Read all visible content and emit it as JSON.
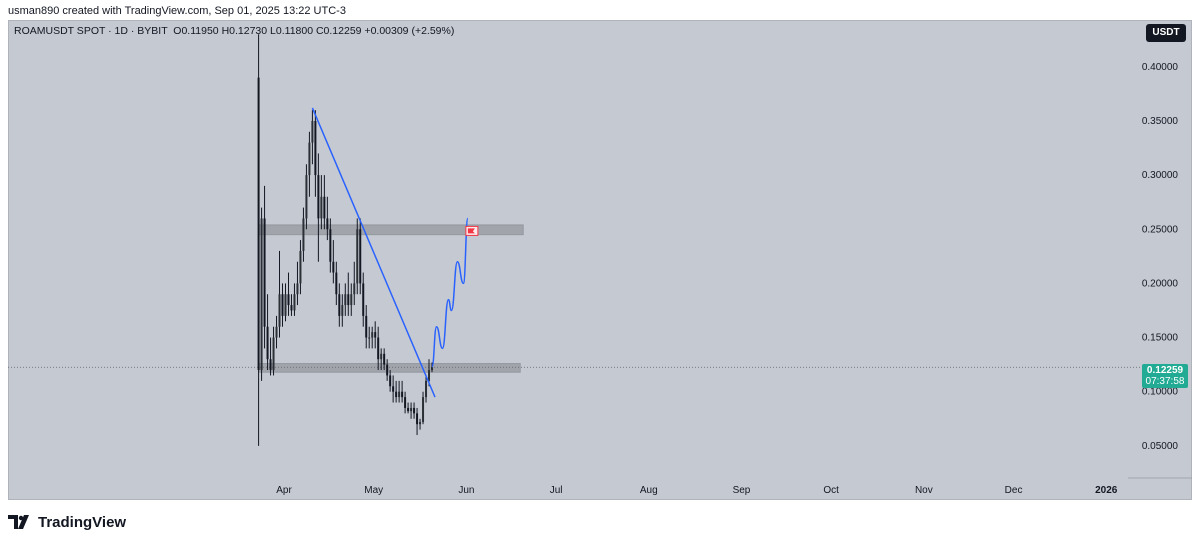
{
  "header": {
    "credit": "usman890 created with TradingView.com, Sep 01, 2025 13:22 UTC-3"
  },
  "legend": {
    "symbol": "ROAMUSDT SPOT · 1D · BYBIT",
    "open": "O0.11950",
    "high": "H0.12730",
    "low": "L0.11800",
    "close": "C0.12259",
    "change": "+0.00309 (+2.59%)"
  },
  "currency_button": "USDT",
  "price_tag": {
    "price": "0.12259",
    "countdown": "07:37:58"
  },
  "brand": {
    "name": "TradingView"
  },
  "colors": {
    "background": "#c5c9d1",
    "candle": "#131722",
    "trendline": "#2962ff",
    "zone": "#9b9ea5",
    "last_price": "#22ab94",
    "flag": "#f23645"
  },
  "chart_data": {
    "type": "candlestick",
    "x_ticks": [
      "Apr",
      "May",
      "Jun",
      "Jul",
      "Aug",
      "Sep",
      "Oct",
      "Nov",
      "Dec",
      "2026"
    ],
    "y_ticks": [
      "0.40000",
      "0.35000",
      "0.30000",
      "0.25000",
      "0.20000",
      "0.15000",
      "0.10000",
      "0.05000"
    ],
    "ylim": [
      0.03,
      0.42
    ],
    "candles": [
      [
        -8.5,
        0.39,
        0.43,
        0.05,
        0.12
      ],
      [
        -7.5,
        0.12,
        0.27,
        0.11,
        0.26
      ],
      [
        -6.5,
        0.26,
        0.29,
        0.14,
        0.16
      ],
      [
        -5.5,
        0.16,
        0.19,
        0.12,
        0.13
      ],
      [
        -4.5,
        0.13,
        0.15,
        0.115,
        0.12
      ],
      [
        -3.5,
        0.12,
        0.16,
        0.115,
        0.15
      ],
      [
        -2.5,
        0.15,
        0.17,
        0.14,
        0.16
      ],
      [
        -1.5,
        0.16,
        0.23,
        0.15,
        0.19
      ],
      [
        -0.5,
        0.19,
        0.2,
        0.16,
        0.17
      ],
      [
        0.5,
        0.17,
        0.2,
        0.165,
        0.19
      ],
      [
        1.5,
        0.19,
        0.21,
        0.17,
        0.18
      ],
      [
        2.5,
        0.18,
        0.19,
        0.17,
        0.175
      ],
      [
        3.5,
        0.175,
        0.2,
        0.17,
        0.19
      ],
      [
        4.5,
        0.19,
        0.22,
        0.18,
        0.2
      ],
      [
        5.5,
        0.2,
        0.24,
        0.19,
        0.23
      ],
      [
        6.5,
        0.23,
        0.27,
        0.22,
        0.26
      ],
      [
        7.5,
        0.26,
        0.31,
        0.25,
        0.3
      ],
      [
        8.5,
        0.3,
        0.34,
        0.28,
        0.33
      ],
      [
        9.5,
        0.33,
        0.36,
        0.31,
        0.35
      ],
      [
        10.5,
        0.35,
        0.36,
        0.28,
        0.3
      ],
      [
        11.5,
        0.3,
        0.32,
        0.22,
        0.26
      ],
      [
        12.5,
        0.26,
        0.3,
        0.25,
        0.28
      ],
      [
        13.5,
        0.28,
        0.3,
        0.25,
        0.26
      ],
      [
        14.5,
        0.26,
        0.28,
        0.24,
        0.25
      ],
      [
        15.5,
        0.25,
        0.26,
        0.21,
        0.22
      ],
      [
        16.5,
        0.22,
        0.24,
        0.2,
        0.21
      ],
      [
        17.5,
        0.21,
        0.22,
        0.18,
        0.19
      ],
      [
        18.5,
        0.19,
        0.2,
        0.16,
        0.17
      ],
      [
        19.5,
        0.17,
        0.19,
        0.16,
        0.18
      ],
      [
        20.5,
        0.18,
        0.2,
        0.17,
        0.19
      ],
      [
        21.5,
        0.19,
        0.21,
        0.17,
        0.18
      ],
      [
        22.5,
        0.18,
        0.2,
        0.17,
        0.19
      ],
      [
        23.5,
        0.19,
        0.22,
        0.18,
        0.2
      ],
      [
        24.5,
        0.2,
        0.26,
        0.19,
        0.25
      ],
      [
        25.5,
        0.25,
        0.26,
        0.19,
        0.2
      ],
      [
        26.5,
        0.2,
        0.21,
        0.16,
        0.17
      ],
      [
        27.5,
        0.17,
        0.18,
        0.14,
        0.15
      ],
      [
        28.5,
        0.15,
        0.16,
        0.14,
        0.15
      ],
      [
        29.5,
        0.15,
        0.16,
        0.14,
        0.155
      ],
      [
        30.5,
        0.155,
        0.165,
        0.14,
        0.15
      ],
      [
        31.5,
        0.15,
        0.16,
        0.12,
        0.13
      ],
      [
        32.5,
        0.13,
        0.14,
        0.12,
        0.135
      ],
      [
        33.5,
        0.135,
        0.14,
        0.12,
        0.125
      ],
      [
        34.5,
        0.125,
        0.13,
        0.11,
        0.115
      ],
      [
        35.5,
        0.115,
        0.12,
        0.1,
        0.105
      ],
      [
        36.5,
        0.105,
        0.115,
        0.09,
        0.1
      ],
      [
        37.5,
        0.1,
        0.11,
        0.09,
        0.095
      ],
      [
        38.5,
        0.095,
        0.11,
        0.09,
        0.1
      ],
      [
        39.5,
        0.1,
        0.11,
        0.09,
        0.095
      ],
      [
        40.5,
        0.095,
        0.1,
        0.08,
        0.085
      ],
      [
        41.5,
        0.085,
        0.09,
        0.08,
        0.082
      ],
      [
        42.5,
        0.082,
        0.09,
        0.075,
        0.085
      ],
      [
        43.5,
        0.085,
        0.09,
        0.075,
        0.08
      ],
      [
        44.5,
        0.08,
        0.085,
        0.06,
        0.07
      ],
      [
        45.5,
        0.07,
        0.075,
        0.065,
        0.072
      ],
      [
        46.5,
        0.072,
        0.1,
        0.07,
        0.095
      ],
      [
        47.5,
        0.095,
        0.115,
        0.09,
        0.11
      ],
      [
        48.5,
        0.11,
        0.13,
        0.105,
        0.12
      ],
      [
        49.5,
        0.12,
        0.127,
        0.118,
        0.1226
      ]
    ],
    "trendline": [
      [
        9.5,
        0.362
      ],
      [
        50.5,
        0.095
      ]
    ],
    "zones": [
      {
        "from": -8.5,
        "to": 80,
        "low": 0.245,
        "high": 0.254
      },
      {
        "from": -8.5,
        "to": 79,
        "low": 0.118,
        "high": 0.126
      }
    ],
    "projection": [
      [
        49.5,
        0.123
      ],
      [
        51,
        0.16
      ],
      [
        53,
        0.14
      ],
      [
        55,
        0.185
      ],
      [
        56,
        0.175
      ],
      [
        58,
        0.22
      ],
      [
        60,
        0.2
      ],
      [
        61.5,
        0.26
      ]
    ],
    "target_flag": [
      62.5,
      0.248
    ],
    "last_price": 0.12259
  }
}
